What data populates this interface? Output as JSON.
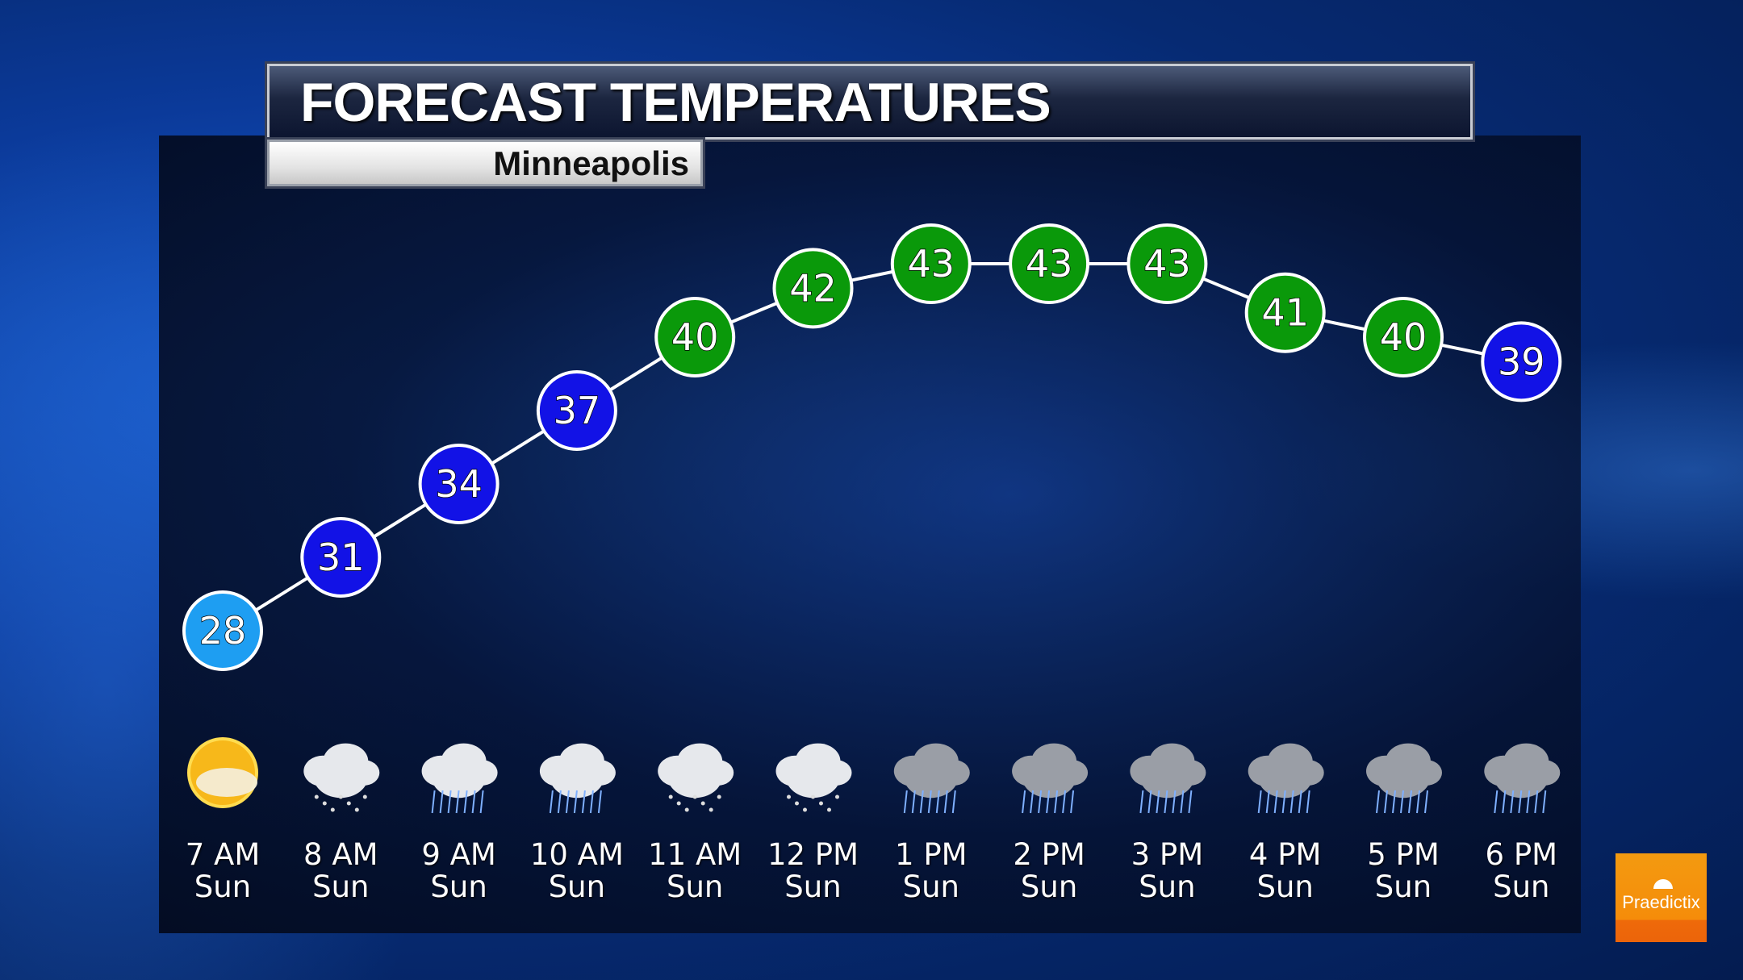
{
  "header": {
    "title": "FORECAST TEMPERATURES",
    "location": "Minneapolis"
  },
  "logo": {
    "text": "Praedictix",
    "color": "#f5900c"
  },
  "chart_data": {
    "type": "line",
    "title": "FORECAST TEMPERATURES",
    "subtitle": "Minneapolis",
    "categories": [
      "7 AM Sun",
      "8 AM Sun",
      "9 AM Sun",
      "10 AM Sun",
      "11 AM Sun",
      "12 PM Sun",
      "1 PM Sun",
      "2 PM Sun",
      "3 PM Sun",
      "4 PM Sun",
      "5 PM Sun",
      "6 PM Sun"
    ],
    "times": [
      "7 AM",
      "8 AM",
      "9 AM",
      "10 AM",
      "11 AM",
      "12 PM",
      "1 PM",
      "2 PM",
      "3 PM",
      "4 PM",
      "5 PM",
      "6 PM"
    ],
    "days": [
      "Sun",
      "Sun",
      "Sun",
      "Sun",
      "Sun",
      "Sun",
      "Sun",
      "Sun",
      "Sun",
      "Sun",
      "Sun",
      "Sun"
    ],
    "values": [
      28,
      31,
      34,
      37,
      40,
      42,
      43,
      43,
      43,
      41,
      40,
      39
    ],
    "conditions": [
      "partly-sunny",
      "snow-flurries",
      "rain",
      "rain",
      "rain-snow-mix",
      "rain-snow-mix",
      "rain",
      "rain",
      "rain",
      "rain",
      "rain",
      "rain"
    ],
    "marker_colors": {
      "below_30": "#1e9ef2",
      "30_to_39": "#1212e6",
      "40_plus": "#0a990a"
    },
    "grid": false
  }
}
